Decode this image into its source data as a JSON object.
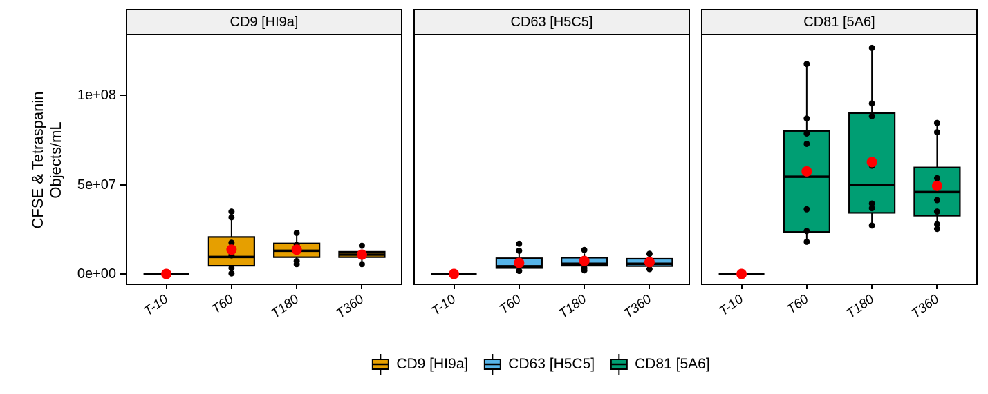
{
  "figure": {
    "y_axis_title_line1": "CFSE & Tetraspanin",
    "y_axis_title_line2": "Objects/mL"
  },
  "chart_data": {
    "type": "boxplot",
    "title": "",
    "xlabel": "",
    "ylabel": "CFSE & Tetraspanin Objects/mL",
    "x_categories": [
      "T-10",
      "T60",
      "T180",
      "T360"
    ],
    "y_ticks": [
      {
        "value": 0,
        "label": "0e+00"
      },
      {
        "value": 50000000,
        "label": "5e+07"
      },
      {
        "value": 100000000,
        "label": "1e+08"
      }
    ],
    "ylim": [
      -5400000,
      133600000
    ],
    "grid": false,
    "legend_position": "bottom",
    "strip_bg": "#F0F0F0",
    "panel_border_color": "#000000",
    "mean_color": "#FF0000",
    "point_color": "#000000",
    "facets": [
      {
        "title": "CD9 [HI9a]",
        "color": "#E69F00",
        "boxes": [
          {
            "category": "T-10",
            "q1": 0,
            "median": 0,
            "q3": 0,
            "whisker_low": 0,
            "whisker_high": 0,
            "mean": 0,
            "points": []
          },
          {
            "category": "T60",
            "q1": 4600000,
            "median": 9500000,
            "q3": 20700000,
            "whisker_low": 300000,
            "whisker_high": 31700000,
            "mean": 13600000,
            "points": [
              34900000,
              31700000,
              17500000,
              10400000,
              3300000,
              300000
            ]
          },
          {
            "category": "T180",
            "q1": 9400000,
            "median": 13000000,
            "q3": 17100000,
            "whisker_low": 5500000,
            "whisker_high": 23000000,
            "mean": 13600000,
            "points": [
              23000000,
              16200000,
              7200000,
              5500000
            ]
          },
          {
            "category": "T360",
            "q1": 9400000,
            "median": 10800000,
            "q3": 12400000,
            "whisker_low": 5500000,
            "whisker_high": 13600000,
            "mean": 10800000,
            "points": [
              15800000,
              5500000
            ]
          }
        ]
      },
      {
        "title": "CD63 [H5C5]",
        "color": "#56B4E9",
        "boxes": [
          {
            "category": "T-10",
            "q1": 0,
            "median": 0,
            "q3": 0,
            "whisker_low": 0,
            "whisker_high": 0,
            "mean": 0,
            "points": []
          },
          {
            "category": "T60",
            "q1": 3300000,
            "median": 4300000,
            "q3": 8800000,
            "whisker_low": 1700000,
            "whisker_high": 13000000,
            "mean": 6200000,
            "points": [
              16900000,
              13000000,
              1700000
            ]
          },
          {
            "category": "T180",
            "q1": 4600000,
            "median": 5700000,
            "q3": 9100000,
            "whisker_low": 2000000,
            "whisker_high": 11500000,
            "mean": 7300000,
            "points": [
              13400000,
              3300000,
              2000000
            ]
          },
          {
            "category": "T360",
            "q1": 4400000,
            "median": 5700000,
            "q3": 8500000,
            "whisker_low": 2700000,
            "whisker_high": 11300000,
            "mean": 6600000,
            "points": [
              11300000,
              2700000
            ]
          }
        ]
      },
      {
        "title": "CD81 [5A6]",
        "color": "#009E73",
        "boxes": [
          {
            "category": "T-10",
            "q1": 0,
            "median": 0,
            "q3": 0,
            "whisker_low": 0,
            "whisker_high": 0,
            "mean": 0,
            "points": []
          },
          {
            "category": "T60",
            "q1": 23500000,
            "median": 54400000,
            "q3": 80000000,
            "whisker_low": 18000000,
            "whisker_high": 117500000,
            "mean": 57400000,
            "points": [
              117500000,
              87000000,
              78600000,
              72800000,
              36200000,
              24000000,
              18000000
            ]
          },
          {
            "category": "T180",
            "q1": 34200000,
            "median": 49700000,
            "q3": 90000000,
            "whisker_low": 27000000,
            "whisker_high": 126500000,
            "mean": 62600000,
            "points": [
              126500000,
              95400000,
              88300000,
              60600000,
              39400000,
              36800000,
              27100000
            ]
          },
          {
            "category": "T360",
            "q1": 32600000,
            "median": 45800000,
            "q3": 59600000,
            "whisker_low": 25200000,
            "whisker_high": 84500000,
            "mean": 49300000,
            "points": [
              84500000,
              79300000,
              53600000,
              41300000,
              34900000,
              27800000,
              25200000
            ]
          }
        ]
      }
    ],
    "legend": [
      {
        "label": "CD9 [HI9a]",
        "color": "#E69F00"
      },
      {
        "label": "CD63 [H5C5]",
        "color": "#56B4E9"
      },
      {
        "label": "CD81 [5A6]",
        "color": "#009E73"
      }
    ]
  }
}
